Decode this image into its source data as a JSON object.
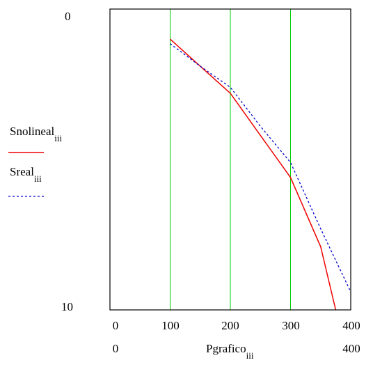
{
  "chart_data": {
    "type": "line",
    "xlabel": "Pgrafico",
    "xlabel_sub": "iii",
    "x_ticks": [
      "0",
      "100",
      "200",
      "300",
      "400"
    ],
    "x_range_labels": [
      "0",
      "400"
    ],
    "y_range_labels": [
      "0",
      "10"
    ],
    "xlim": [
      0,
      400
    ],
    "ylim": [
      0,
      10
    ],
    "y_inverted": true,
    "grid": "vertical",
    "grid_color": "#00cc00",
    "legend_position": "left",
    "series": [
      {
        "name": "Snolineal",
        "name_sub": "iii",
        "color": "#ee0000",
        "style": "solid",
        "x": [
          100,
          200,
          300,
          350,
          375
        ],
        "y": [
          1.0,
          2.8,
          5.6,
          7.9,
          10.0
        ]
      },
      {
        "name": "Sreal",
        "name_sub": "iii",
        "color": "#0000cc",
        "style": "dashed",
        "x": [
          100,
          150,
          200,
          250,
          300,
          350,
          400
        ],
        "y": [
          1.15,
          1.9,
          2.6,
          3.9,
          5.1,
          7.3,
          9.4
        ]
      }
    ]
  }
}
